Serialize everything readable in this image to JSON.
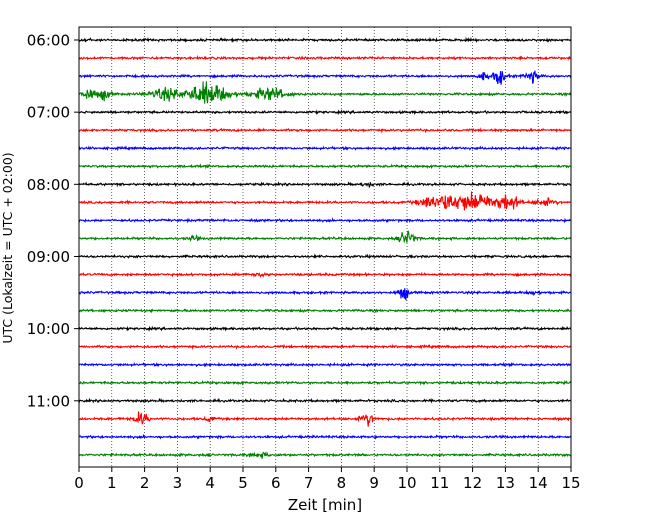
{
  "chart_data": {
    "type": "line",
    "title": "",
    "xlabel": "Zeit  [min]",
    "ylabel": "UTC (Lokalzeit = UTC + 02:00)",
    "xlim": [
      0,
      15
    ],
    "x_ticks": [
      0,
      1,
      2,
      3,
      4,
      5,
      6,
      7,
      8,
      9,
      10,
      11,
      12,
      13,
      14,
      15
    ],
    "x_tick_labels": [
      "0",
      "1",
      "2",
      "3",
      "4",
      "5",
      "6",
      "7",
      "8",
      "9",
      "10",
      "11",
      "12",
      "13",
      "14",
      "15"
    ],
    "y_ticks": [
      "06:00",
      "07:00",
      "08:00",
      "09:00",
      "10:00",
      "11:00"
    ],
    "grid": "vertical dotted at each minute",
    "colors": {
      "black": "#000000",
      "red": "#ff0000",
      "blue": "#0000ff",
      "green": "#008000"
    },
    "trace_minutes": 15,
    "traces": [
      {
        "start": "06:00",
        "color": "black",
        "events": [
          {
            "t": 0.2,
            "amp": 3.0,
            "dur": 0.3
          }
        ]
      },
      {
        "start": "06:15",
        "color": "red",
        "events": []
      },
      {
        "start": "06:30",
        "color": "blue",
        "events": [
          {
            "t": 12.3,
            "amp": 5.0,
            "dur": 0.3
          },
          {
            "t": 12.8,
            "amp": 11.0,
            "dur": 0.4
          },
          {
            "t": 13.8,
            "amp": 8.0,
            "dur": 0.4
          }
        ]
      },
      {
        "start": "06:45",
        "color": "green",
        "events": [
          {
            "t": 0.3,
            "amp": 7.0,
            "dur": 0.6
          },
          {
            "t": 0.8,
            "amp": 8.0,
            "dur": 0.3
          },
          {
            "t": 2.6,
            "amp": 8.0,
            "dur": 0.9
          },
          {
            "t": 3.9,
            "amp": 16.0,
            "dur": 1.2
          },
          {
            "t": 5.8,
            "amp": 9.0,
            "dur": 1.0
          }
        ]
      },
      {
        "start": "07:00",
        "color": "black",
        "events": []
      },
      {
        "start": "07:15",
        "color": "red",
        "events": []
      },
      {
        "start": "07:30",
        "color": "blue",
        "events": []
      },
      {
        "start": "07:45",
        "color": "green",
        "events": []
      },
      {
        "start": "08:00",
        "color": "black",
        "events": [
          {
            "t": 8.8,
            "amp": 3.0,
            "dur": 0.3
          }
        ]
      },
      {
        "start": "08:15",
        "color": "red",
        "events": [
          {
            "t": 10.9,
            "amp": 9.0,
            "dur": 1.0
          },
          {
            "t": 12.0,
            "amp": 13.0,
            "dur": 1.6
          },
          {
            "t": 13.1,
            "amp": 10.0,
            "dur": 0.6
          },
          {
            "t": 14.2,
            "amp": 5.0,
            "dur": 0.6
          }
        ]
      },
      {
        "start": "08:30",
        "color": "blue",
        "events": []
      },
      {
        "start": "08:45",
        "color": "green",
        "events": [
          {
            "t": 3.5,
            "amp": 3.0,
            "dur": 0.3
          },
          {
            "t": 10.0,
            "amp": 12.0,
            "dur": 0.4
          }
        ]
      },
      {
        "start": "09:00",
        "color": "black",
        "events": []
      },
      {
        "start": "09:15",
        "color": "red",
        "events": [
          {
            "t": 5.5,
            "amp": 3.0,
            "dur": 0.3
          }
        ]
      },
      {
        "start": "09:30",
        "color": "blue",
        "events": [
          {
            "t": 9.9,
            "amp": 10.0,
            "dur": 0.3
          },
          {
            "t": 13.9,
            "amp": 3.0,
            "dur": 0.3
          }
        ]
      },
      {
        "start": "09:45",
        "color": "green",
        "events": []
      },
      {
        "start": "10:00",
        "color": "black",
        "events": []
      },
      {
        "start": "10:15",
        "color": "red",
        "events": []
      },
      {
        "start": "10:30",
        "color": "blue",
        "events": []
      },
      {
        "start": "10:45",
        "color": "green",
        "events": []
      },
      {
        "start": "11:00",
        "color": "black",
        "events": []
      },
      {
        "start": "11:15",
        "color": "red",
        "events": [
          {
            "t": 1.9,
            "amp": 9.0,
            "dur": 0.4
          },
          {
            "t": 4.0,
            "amp": 3.0,
            "dur": 0.3
          },
          {
            "t": 8.8,
            "amp": 9.0,
            "dur": 0.4
          }
        ]
      },
      {
        "start": "11:30",
        "color": "blue",
        "events": []
      },
      {
        "start": "11:45",
        "color": "green",
        "events": [
          {
            "t": 5.5,
            "amp": 3.0,
            "dur": 0.6
          }
        ]
      }
    ]
  }
}
